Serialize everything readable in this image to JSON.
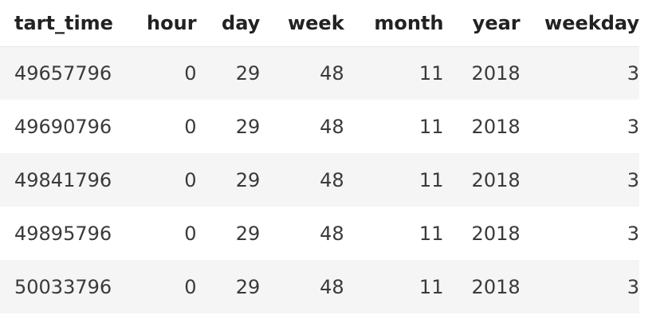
{
  "table": {
    "columns": [
      "tart_time",
      "hour",
      "day",
      "week",
      "month",
      "year",
      "weekday"
    ],
    "rows": [
      [
        "49657796",
        "0",
        "29",
        "48",
        "11",
        "2018",
        "3"
      ],
      [
        "49690796",
        "0",
        "29",
        "48",
        "11",
        "2018",
        "3"
      ],
      [
        "49841796",
        "0",
        "29",
        "48",
        "11",
        "2018",
        "3"
      ],
      [
        "49895796",
        "0",
        "29",
        "48",
        "11",
        "2018",
        "3"
      ],
      [
        "50033796",
        "0",
        "29",
        "48",
        "11",
        "2018",
        "3"
      ]
    ]
  }
}
